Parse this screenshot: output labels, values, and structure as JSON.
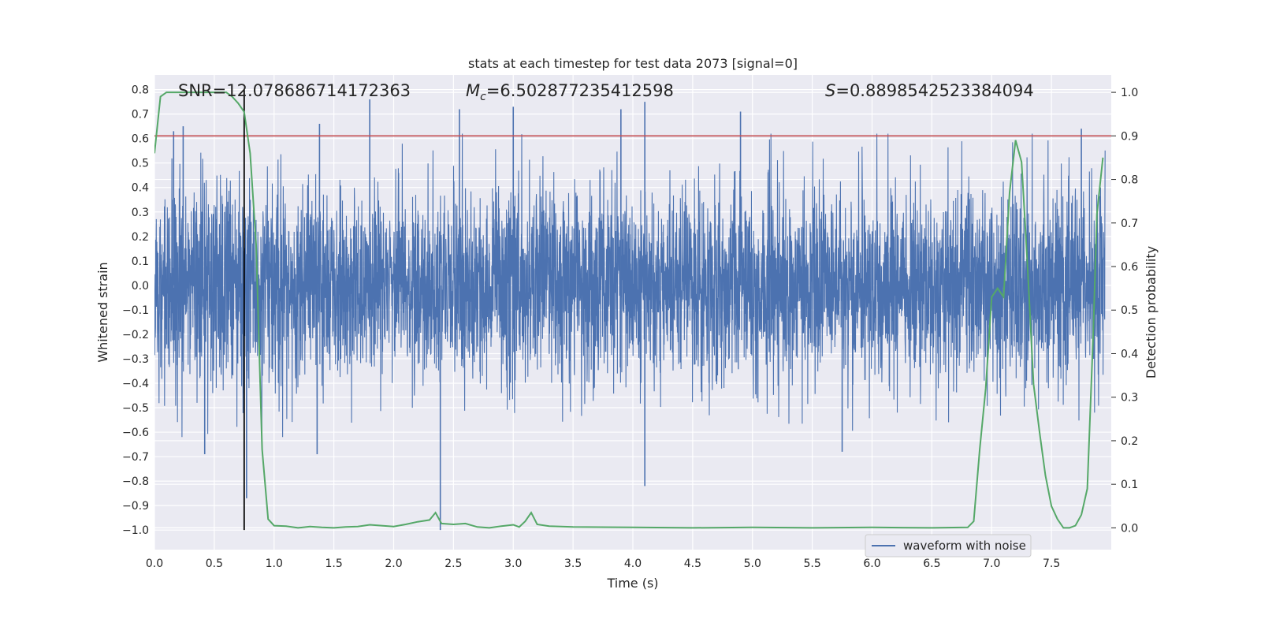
{
  "chart_data": {
    "type": "line",
    "title": "stats at each timestep for test data 2073 [signal=0]",
    "xlabel": "Time (s)",
    "ylabel": "Whitened strain",
    "ylabel_right": "Detection probability",
    "xlim": [
      0.0,
      8.0
    ],
    "ylim": [
      -1.08,
      0.86
    ],
    "ylim_right": [
      -0.05,
      1.04
    ],
    "x_ticks": [
      "0.0",
      "0.5",
      "1.0",
      "1.5",
      "2.0",
      "2.5",
      "3.0",
      "3.5",
      "4.0",
      "4.5",
      "5.0",
      "5.5",
      "6.0",
      "6.5",
      "7.0",
      "7.5"
    ],
    "y_ticks": [
      "0.8",
      "0.7",
      "0.6",
      "0.5",
      "0.4",
      "0.3",
      "0.2",
      "0.1",
      "0.0",
      "-0.1",
      "-0.2",
      "-0.3",
      "-0.4",
      "-0.5",
      "-0.6",
      "-0.7",
      "-0.8",
      "-0.9",
      "-1.0"
    ],
    "y_ticks_right": [
      "1.0",
      "0.9",
      "0.8",
      "0.7",
      "0.6",
      "0.5",
      "0.4",
      "0.3",
      "0.2",
      "0.1",
      "0.0"
    ],
    "annotations": {
      "snr": "SNR=12.078686714172363",
      "mc_symbol": "M",
      "mc_sub": "c",
      "mc_value": "=6.502877235412598",
      "s_symbol": "S",
      "s_value": "=0.8898542523384094"
    },
    "threshold": {
      "value": 0.9,
      "axis": "right",
      "color": "#c44e52"
    },
    "marker_line": {
      "x": 0.75,
      "y_range": [
        -1.0,
        0.8
      ],
      "color": "#000000"
    },
    "series": [
      {
        "name": "waveform with noise",
        "color": "#4c72b0",
        "style": "dense noise",
        "sample_rate_note": "approx. whitened noise, peaks shown",
        "peaks": [
          {
            "x": 0.16,
            "y": 0.63
          },
          {
            "x": 0.24,
            "y": 0.65
          },
          {
            "x": 0.42,
            "y": -0.69
          },
          {
            "x": 0.77,
            "y": -0.87
          },
          {
            "x": 1.36,
            "y": -0.69
          },
          {
            "x": 1.38,
            "y": 0.66
          },
          {
            "x": 1.8,
            "y": 0.76
          },
          {
            "x": 2.39,
            "y": -1.0
          },
          {
            "x": 2.55,
            "y": 0.72
          },
          {
            "x": 3.0,
            "y": 0.73
          },
          {
            "x": 3.9,
            "y": 0.72
          },
          {
            "x": 4.1,
            "y": 0.75
          },
          {
            "x": 4.1,
            "y": -0.82
          },
          {
            "x": 4.9,
            "y": 0.71
          },
          {
            "x": 5.75,
            "y": -0.68
          },
          {
            "x": 7.75,
            "y": 0.64
          }
        ]
      },
      {
        "name": "detection probability",
        "axis": "right",
        "color": "#55a868",
        "x": [
          0.0,
          0.05,
          0.1,
          0.2,
          0.3,
          0.4,
          0.5,
          0.6,
          0.65,
          0.7,
          0.75,
          0.8,
          0.85,
          0.9,
          0.95,
          1.0,
          1.1,
          1.2,
          1.3,
          1.4,
          1.5,
          1.6,
          1.7,
          1.8,
          1.9,
          2.0,
          2.1,
          2.2,
          2.3,
          2.35,
          2.4,
          2.5,
          2.6,
          2.7,
          2.8,
          2.9,
          3.0,
          3.05,
          3.1,
          3.15,
          3.2,
          3.3,
          3.5,
          4.0,
          4.5,
          5.0,
          5.5,
          6.0,
          6.5,
          6.8,
          6.85,
          6.9,
          6.95,
          7.0,
          7.05,
          7.1,
          7.15,
          7.2,
          7.25,
          7.3,
          7.35,
          7.4,
          7.45,
          7.5,
          7.55,
          7.6,
          7.65,
          7.7,
          7.75,
          7.8,
          7.85,
          7.88,
          7.93
        ],
        "y": [
          0.86,
          0.99,
          1.0,
          1.0,
          1.0,
          1.0,
          1.0,
          1.0,
          0.99,
          0.975,
          0.955,
          0.86,
          0.65,
          0.18,
          0.02,
          0.005,
          0.004,
          0.0,
          0.003,
          0.001,
          0.0,
          0.002,
          0.003,
          0.007,
          0.005,
          0.003,
          0.008,
          0.014,
          0.018,
          0.035,
          0.01,
          0.008,
          0.01,
          0.002,
          0.0,
          0.004,
          0.007,
          0.002,
          0.015,
          0.035,
          0.008,
          0.004,
          0.002,
          0.001,
          0.0,
          0.001,
          0.0,
          0.001,
          0.0,
          0.001,
          0.015,
          0.18,
          0.32,
          0.53,
          0.55,
          0.53,
          0.77,
          0.89,
          0.84,
          0.6,
          0.33,
          0.22,
          0.12,
          0.05,
          0.02,
          0.0,
          0.0,
          0.005,
          0.03,
          0.09,
          0.45,
          0.72,
          0.85
        ]
      }
    ],
    "legend": {
      "entries": [
        "waveform with noise"
      ],
      "placement": "lower-right"
    },
    "grid": true
  },
  "colors": {
    "background_plot": "#eaeaf2",
    "grid": "#ffffff",
    "waveform": "#4c72b0",
    "probability": "#55a868",
    "threshold": "#c44e52",
    "marker": "#000000"
  }
}
